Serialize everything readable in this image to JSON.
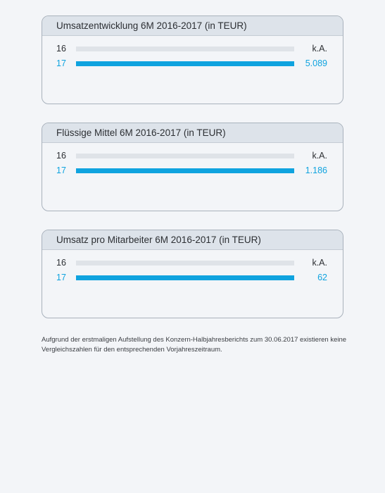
{
  "chart_data": [
    {
      "type": "bar",
      "title": "Umsatzentwicklung 6M 2016-2017 (in TEUR)",
      "categories": [
        "16",
        "17"
      ],
      "values": [
        null,
        5089
      ],
      "value_labels": [
        "k.A.",
        "5.089"
      ]
    },
    {
      "type": "bar",
      "title": "Flüssige Mittel 6M 2016-2017 (in TEUR)",
      "categories": [
        "16",
        "17"
      ],
      "values": [
        null,
        1186
      ],
      "value_labels": [
        "k.A.",
        "1.186"
      ]
    },
    {
      "type": "bar",
      "title": "Umsatz pro Mitarbeiter 6M 2016-2017 (in TEUR)",
      "categories": [
        "16",
        "17"
      ],
      "values": [
        null,
        62
      ],
      "value_labels": [
        "k.A.",
        "62"
      ]
    }
  ],
  "colors": {
    "current_year": "#0fa3df",
    "track": "#dfe3e8"
  },
  "footnote": "Aufgrund der erstmaligen Aufstellung des Konzern-Halbjahresberichts zum 30.06.2017 existieren keine Vergleichszahlen für den entsprechenden Vorjahreszeitraum."
}
